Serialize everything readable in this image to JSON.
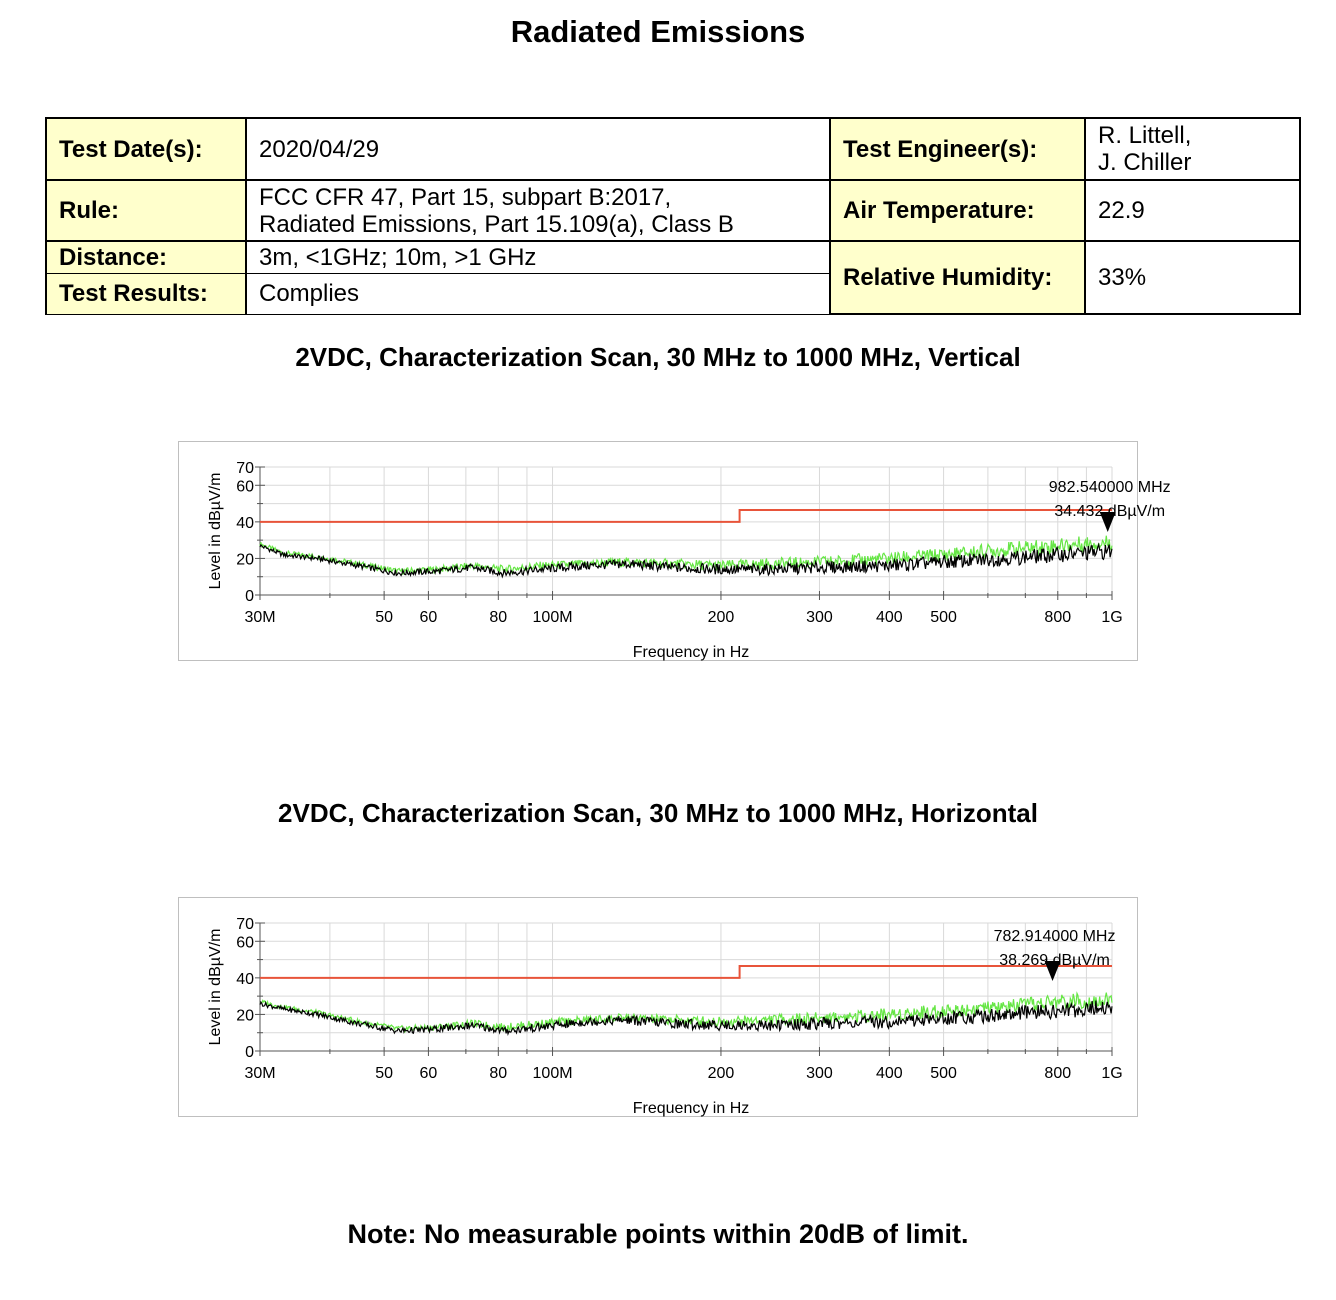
{
  "page": {
    "title": "Radiated Emissions",
    "note": "Note:  No measurable points within 20dB of limit."
  },
  "info": {
    "test_dates_label": "Test Date(s):",
    "test_dates_value": "2020/04/29",
    "test_engineers_label": "Test Engineer(s):",
    "test_engineers_value_1": "R. Littell,",
    "test_engineers_value_2": "J. Chiller",
    "rule_label": "Rule:",
    "rule_value_1": "FCC CFR 47, Part 15, subpart B:2017,",
    "rule_value_2": "Radiated Emissions, Part 15.109(a), Class B",
    "air_temp_label": "Air Temperature:",
    "air_temp_value": "22.9",
    "distance_label": "Distance:",
    "distance_value": "3m, <1GHz; 10m, >1 GHz",
    "humidity_label": "Relative Humidity:",
    "humidity_value": "33%",
    "results_label": "Test Results:",
    "results_value": "Complies"
  },
  "chart_data": [
    {
      "type": "line",
      "title": "2VDC, Characterization Scan, 30 MHz to 1000 MHz, Vertical",
      "xlabel": "Frequency in Hz",
      "ylabel": "Level in dBµV/m",
      "x_scale": "log",
      "xlim_mhz": [
        30,
        1000
      ],
      "ylim": [
        0,
        70
      ],
      "y_ticks": [
        "0",
        "20",
        "40",
        "60",
        "70"
      ],
      "x_ticks": [
        {
          "mhz": 30,
          "label": "30M"
        },
        {
          "mhz": 50,
          "label": "50"
        },
        {
          "mhz": 60,
          "label": "60"
        },
        {
          "mhz": 80,
          "label": "80"
        },
        {
          "mhz": 100,
          "label": "100M"
        },
        {
          "mhz": 200,
          "label": "200"
        },
        {
          "mhz": 300,
          "label": "300"
        },
        {
          "mhz": 400,
          "label": "400"
        },
        {
          "mhz": 500,
          "label": "500"
        },
        {
          "mhz": 800,
          "label": "800"
        },
        {
          "mhz": 1000,
          "label": "1G"
        }
      ],
      "limit_line": {
        "color": "#e8543a",
        "x_mhz": [
          30,
          216,
          216,
          1000
        ],
        "y": [
          40,
          40,
          46.5,
          46.5
        ]
      },
      "series": [
        {
          "color": "#66e645",
          "x_mhz": [
            30,
            33,
            38,
            45,
            53,
            62,
            72,
            82,
            95,
            115,
            135,
            165,
            200,
            240,
            300,
            400,
            500,
            650,
            800,
            1000
          ],
          "y": [
            28,
            23,
            21,
            17,
            13,
            14,
            16,
            14,
            16,
            17,
            18,
            17,
            16,
            17,
            18,
            20,
            22,
            25,
            27,
            29
          ]
        },
        {
          "color": "#000000",
          "x_mhz": [
            30,
            33,
            38,
            45,
            53,
            62,
            72,
            82,
            95,
            115,
            135,
            165,
            200,
            240,
            300,
            400,
            500,
            650,
            800,
            1000
          ],
          "y": [
            27,
            22,
            20,
            16,
            12,
            13,
            15,
            12,
            14,
            16,
            17,
            15,
            14,
            14,
            15,
            16,
            18,
            20,
            22,
            24
          ]
        }
      ],
      "marker": {
        "x_mhz": 982.54,
        "y": 34.432,
        "label_freq": "982.540000 MHz",
        "label_level": "34.432 dBµV/m"
      }
    },
    {
      "type": "line",
      "title": "2VDC, Characterization Scan, 30 MHz to 1000 MHz, Horizontal",
      "xlabel": "Frequency in Hz",
      "ylabel": "Level in dBµV/m",
      "x_scale": "log",
      "xlim_mhz": [
        30,
        1000
      ],
      "ylim": [
        0,
        70
      ],
      "y_ticks": [
        "0",
        "20",
        "40",
        "60",
        "70"
      ],
      "x_ticks": [
        {
          "mhz": 30,
          "label": "30M"
        },
        {
          "mhz": 50,
          "label": "50"
        },
        {
          "mhz": 60,
          "label": "60"
        },
        {
          "mhz": 80,
          "label": "80"
        },
        {
          "mhz": 100,
          "label": "100M"
        },
        {
          "mhz": 200,
          "label": "200"
        },
        {
          "mhz": 300,
          "label": "300"
        },
        {
          "mhz": 400,
          "label": "400"
        },
        {
          "mhz": 500,
          "label": "500"
        },
        {
          "mhz": 800,
          "label": "800"
        },
        {
          "mhz": 1000,
          "label": "1G"
        }
      ],
      "limit_line": {
        "color": "#e8543a",
        "x_mhz": [
          30,
          216,
          216,
          1000
        ],
        "y": [
          40,
          40,
          46.5,
          46.5
        ]
      },
      "series": [
        {
          "color": "#66e645",
          "x_mhz": [
            30,
            33,
            38,
            45,
            53,
            62,
            72,
            82,
            95,
            115,
            135,
            165,
            200,
            240,
            300,
            400,
            500,
            650,
            800,
            1000
          ],
          "y": [
            27,
            24,
            21,
            16,
            12,
            13,
            15,
            13,
            15,
            17,
            18,
            17,
            16,
            17,
            18,
            20,
            22,
            24,
            27,
            28
          ]
        },
        {
          "color": "#000000",
          "x_mhz": [
            30,
            33,
            38,
            45,
            53,
            62,
            72,
            82,
            95,
            115,
            135,
            165,
            200,
            240,
            300,
            400,
            500,
            650,
            800,
            1000
          ],
          "y": [
            26,
            23,
            20,
            15,
            11,
            12,
            14,
            11,
            13,
            16,
            17,
            15,
            14,
            14,
            15,
            16,
            18,
            20,
            22,
            24
          ]
        }
      ],
      "marker": {
        "x_mhz": 782.914,
        "y": 38.269,
        "label_freq": "782.914000 MHz",
        "label_level": "38.269 dBµV/m"
      }
    }
  ]
}
